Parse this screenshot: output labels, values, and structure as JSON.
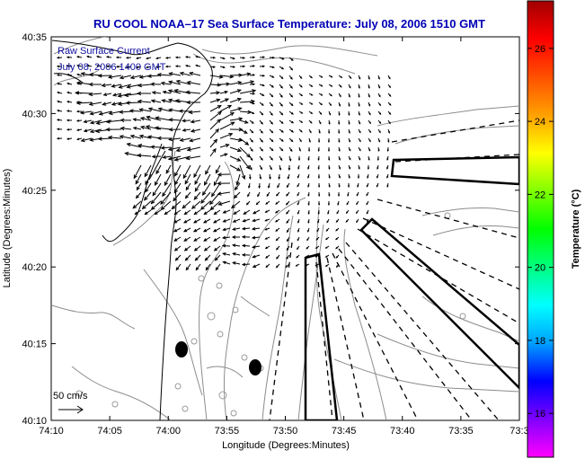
{
  "chart_data": {
    "type": "map",
    "title": "RU COOL  NOAA–17  Sea Surface Temperature:  July 08, 2006 1510 GMT",
    "xlabel": "Longitude (Degrees:Minutes)",
    "ylabel": "Latitude (Degrees:Minutes)",
    "x_ticks": [
      "74:10",
      "74:05",
      "74:00",
      "73:55",
      "73:50",
      "73:45",
      "73:40",
      "73:35",
      "73:3"
    ],
    "y_ticks": [
      "40:10",
      "40:15",
      "40:20",
      "40:25",
      "40:30",
      "40:35"
    ],
    "xlim_minutes_west": [
      70,
      30
    ],
    "ylim_minutes_north": [
      10,
      35
    ],
    "grid": false,
    "annotation_lines": [
      "Raw Surface Current",
      "July 08, 2006 1400 GMT"
    ],
    "scale_label": "50 cm/s",
    "colorbar": {
      "label": "Temperature (°C)",
      "ticks": [
        16,
        18,
        20,
        22,
        24,
        26
      ],
      "range": [
        14.8,
        27.3
      ],
      "colors": [
        "#ff00ff",
        "#8000ff",
        "#0000ff",
        "#00a0ff",
        "#00ffff",
        "#00ff80",
        "#00ff00",
        "#80ff00",
        "#ffff00",
        "#ffa000",
        "#ff5000",
        "#ff0000",
        "#a00000"
      ]
    },
    "buoys": [
      {
        "lon": "73:58.7",
        "lat": "40:14.7"
      },
      {
        "lon": "73:52.3",
        "lat": "40:13.5"
      }
    ],
    "colors": {
      "title": "#0000b4",
      "vectors": "#000000",
      "coast": "#000000",
      "contours": "#8c8c8c",
      "box": "#000000"
    }
  }
}
